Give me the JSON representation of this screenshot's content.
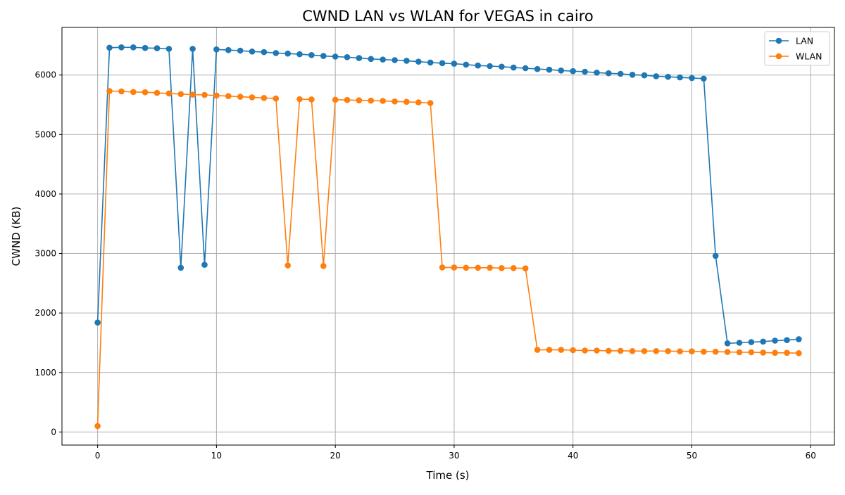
{
  "chart_data": {
    "type": "line",
    "title": "CWND LAN vs WLAN for VEGAS in cairo",
    "xlabel": "Time (s)",
    "ylabel": "CWND (KB)",
    "xlim": [
      -3,
      62
    ],
    "ylim": [
      -220,
      6800
    ],
    "xticks": [
      0,
      10,
      20,
      30,
      40,
      50,
      60
    ],
    "yticks": [
      0,
      1000,
      2000,
      3000,
      4000,
      5000,
      6000
    ],
    "grid": true,
    "legend_position": "top-right",
    "series": [
      {
        "name": "LAN",
        "color": "#1f77b4",
        "marker": "circle",
        "x": [
          0,
          1,
          2,
          3,
          4,
          5,
          6,
          7,
          8,
          9,
          10,
          11,
          12,
          13,
          14,
          15,
          16,
          17,
          18,
          19,
          20,
          21,
          22,
          23,
          24,
          25,
          26,
          27,
          28,
          29,
          30,
          31,
          32,
          33,
          34,
          35,
          36,
          37,
          38,
          39,
          40,
          41,
          42,
          43,
          44,
          45,
          46,
          47,
          48,
          49,
          50,
          51,
          52,
          53,
          54,
          55,
          56,
          57,
          58,
          59
        ],
        "y": [
          1840,
          6460,
          6465,
          6465,
          6455,
          6450,
          6440,
          2760,
          6440,
          2810,
          6430,
          6420,
          6410,
          6395,
          6385,
          6370,
          6360,
          6350,
          6335,
          6320,
          6310,
          6300,
          6285,
          6270,
          6260,
          6250,
          6240,
          6225,
          6210,
          6200,
          6190,
          6175,
          6160,
          6150,
          6140,
          6125,
          6115,
          6100,
          6090,
          6075,
          6065,
          6055,
          6040,
          6030,
          6020,
          6005,
          5995,
          5980,
          5970,
          5960,
          5950,
          5940,
          2960,
          1490,
          1500,
          1510,
          1520,
          1535,
          1545,
          1560
        ]
      },
      {
        "name": "WLAN",
        "color": "#ff7f0e",
        "marker": "circle",
        "x": [
          0,
          1,
          2,
          3,
          4,
          5,
          6,
          7,
          8,
          9,
          10,
          11,
          12,
          13,
          14,
          15,
          16,
          17,
          18,
          19,
          20,
          21,
          22,
          23,
          24,
          25,
          26,
          27,
          28,
          29,
          30,
          31,
          32,
          33,
          34,
          35,
          36,
          37,
          38,
          39,
          40,
          41,
          42,
          43,
          44,
          45,
          46,
          47,
          48,
          49,
          50,
          51,
          52,
          53,
          54,
          55,
          56,
          57,
          58,
          59
        ],
        "y": [
          100,
          5730,
          5725,
          5715,
          5710,
          5700,
          5690,
          5680,
          5670,
          5665,
          5655,
          5645,
          5635,
          5625,
          5615,
          5605,
          2800,
          5595,
          5590,
          2790,
          5585,
          5580,
          5575,
          5570,
          5565,
          5555,
          5550,
          5540,
          5530,
          2765,
          2765,
          2760,
          2760,
          2760,
          2755,
          2755,
          2750,
          1380,
          1380,
          1380,
          1375,
          1370,
          1370,
          1365,
          1365,
          1360,
          1360,
          1360,
          1360,
          1355,
          1355,
          1350,
          1350,
          1345,
          1340,
          1340,
          1335,
          1330,
          1330,
          1325
        ]
      }
    ]
  }
}
